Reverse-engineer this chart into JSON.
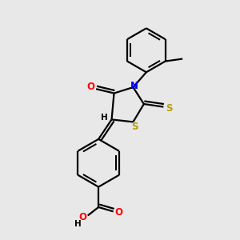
{
  "bg_color": "#e8e8e8",
  "bond_color": "#000000",
  "N_color": "#0000ff",
  "S_color": "#b8a000",
  "O_color": "#ff0000",
  "line_width": 1.6,
  "figsize": [
    3.0,
    3.0
  ],
  "dpi": 100,
  "xlim": [
    0,
    10
  ],
  "ylim": [
    0,
    10
  ]
}
